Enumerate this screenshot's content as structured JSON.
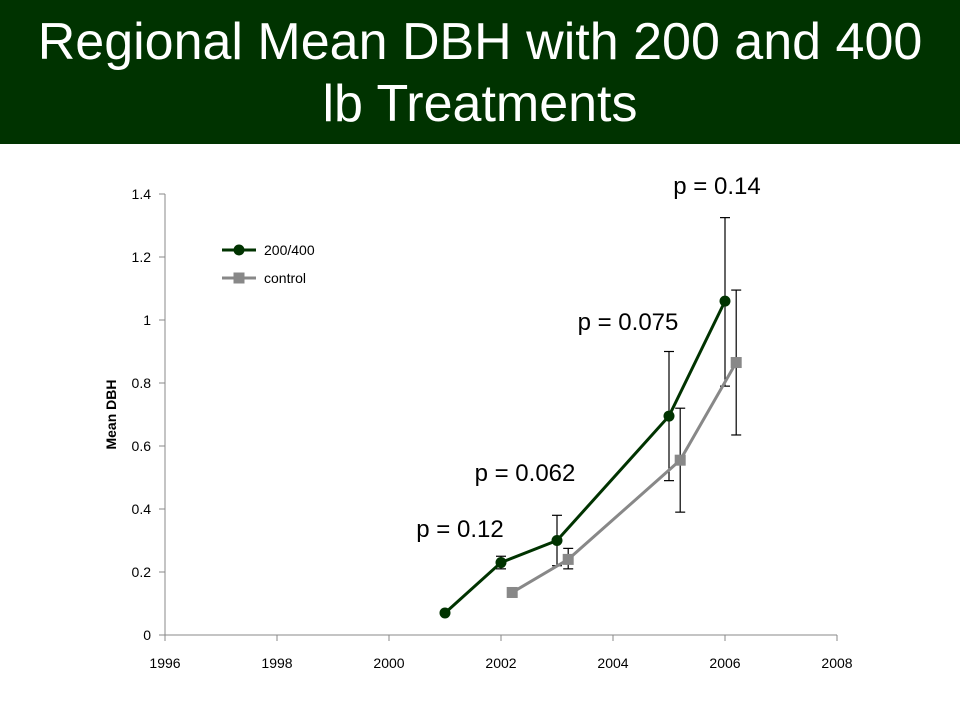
{
  "slide": {
    "title": "Regional Mean DBH with 200 and 400 lb Treatments",
    "title_bg": "#003300"
  },
  "chart_data": {
    "type": "line",
    "title": "",
    "xlabel": "",
    "ylabel": "Mean DBH",
    "xlim": [
      1996,
      2008
    ],
    "ylim": [
      0,
      1.4
    ],
    "x_ticks": [
      1996,
      1998,
      2000,
      2002,
      2004,
      2006,
      2008
    ],
    "y_ticks": [
      0,
      0.2,
      0.4,
      0.6,
      0.8,
      1,
      1.2,
      1.4
    ],
    "y_tick_labels": [
      "0",
      "0.2",
      "0.4",
      "0.6",
      "0.8",
      "1",
      "1.2",
      "1.4"
    ],
    "grid": false,
    "legend_position": "top-left",
    "series": [
      {
        "name": "200/400",
        "color": "#003300",
        "marker": "circle",
        "points": [
          {
            "x": 2001,
            "y": 0.07
          },
          {
            "x": 2002,
            "y": 0.23,
            "err_low": 0.21,
            "err_high": 0.25
          },
          {
            "x": 2003,
            "y": 0.3,
            "err_low": 0.22,
            "err_high": 0.38
          },
          {
            "x": 2005,
            "y": 0.695,
            "err_low": 0.49,
            "err_high": 0.9
          },
          {
            "x": 2006,
            "y": 1.06,
            "err_low": 0.79,
            "err_high": 1.325
          }
        ]
      },
      {
        "name": "control",
        "color": "#888888",
        "marker": "square",
        "points": [
          {
            "x": 2002.2,
            "y": 0.135
          },
          {
            "x": 2003.2,
            "y": 0.24,
            "err_low": 0.21,
            "err_high": 0.275
          },
          {
            "x": 2005.2,
            "y": 0.555,
            "err_low": 0.39,
            "err_high": 0.72
          },
          {
            "x": 2006.2,
            "y": 0.865,
            "err_low": 0.635,
            "err_high": 1.095
          }
        ]
      }
    ],
    "annotations": [
      {
        "text": "p = 0.12",
        "x": 2002
      },
      {
        "text": "p = 0.062",
        "x": 2003
      },
      {
        "text": "p = 0.075",
        "x": 2005
      },
      {
        "text": "p = 0.14",
        "x": 2006
      }
    ]
  }
}
